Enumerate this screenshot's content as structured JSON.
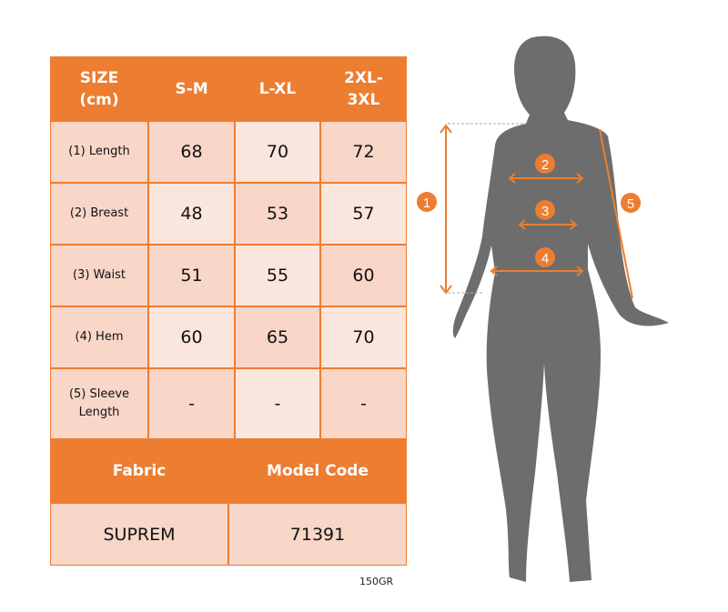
{
  "table": {
    "headers": [
      "SIZE\n(cm)",
      "S-M",
      "L-XL",
      "2XL-\n3XL"
    ],
    "rows": [
      {
        "label": "(1) Length",
        "values": [
          "68",
          "70",
          "72"
        ]
      },
      {
        "label": "(2) Breast",
        "values": [
          "48",
          "53",
          "57"
        ]
      },
      {
        "label": "(3) Waist",
        "values": [
          "51",
          "55",
          "60"
        ]
      },
      {
        "label": "(4) Hem",
        "values": [
          "60",
          "65",
          "70"
        ]
      },
      {
        "label": "(5) Sleeve Length",
        "values": [
          "-",
          "-",
          "-"
        ]
      }
    ],
    "fabric_label": "Fabric",
    "model_code_label": "Model Code",
    "fabric_value": "SUPREM",
    "model_code_value": "71391"
  },
  "weight": "150GR",
  "figure": {
    "markers": [
      "1",
      "2",
      "3",
      "4",
      "5"
    ]
  },
  "colors": {
    "accent": "#ec7d31",
    "silhouette": "#6d6d6d",
    "cell_light": "#fbe6dd",
    "cell_dark": "#f8d6c8"
  }
}
